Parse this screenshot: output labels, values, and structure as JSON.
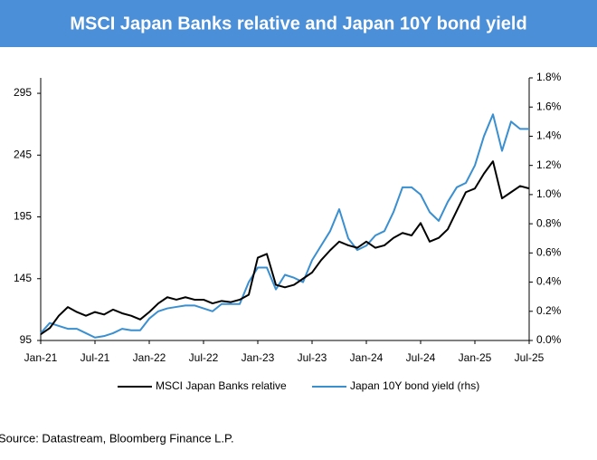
{
  "chart_data": {
    "type": "line",
    "title": "MSCI Japan Banks relative and Japan 10Y bond yield",
    "source": "Source: Datastream, Bloomberg Finance L.P.",
    "categories": [
      "Jan-21",
      null,
      null,
      null,
      null,
      null,
      "Jul-21",
      null,
      null,
      null,
      null,
      null,
      "Jan-22",
      null,
      null,
      null,
      null,
      null,
      "Jul-22",
      null,
      null,
      null,
      null,
      null,
      "Jan-23",
      null,
      null,
      null,
      null,
      null,
      "Jul-23",
      null,
      null,
      null,
      null,
      null,
      "Jan-24",
      null,
      null,
      null,
      null,
      null,
      "Jul-24",
      null,
      null,
      null,
      null,
      null,
      "Jan-25",
      null,
      null,
      null,
      null,
      null,
      "Jul-25"
    ],
    "series": [
      {
        "name": "MSCI Japan Banks relative",
        "color": "#000000",
        "values": [
          100,
          105,
          115,
          122,
          118,
          115,
          118,
          116,
          120,
          117,
          115,
          112,
          118,
          125,
          130,
          128,
          130,
          128,
          128,
          125,
          127,
          126,
          128,
          132,
          162,
          165,
          140,
          138,
          140,
          145,
          150,
          160,
          168,
          175,
          172,
          170,
          175,
          170,
          172,
          178,
          182,
          180,
          190,
          175,
          178,
          185,
          200,
          215,
          218,
          230,
          240,
          210,
          215,
          220,
          218
        ]
      },
      {
        "name": "Japan 10Y bond yield (rhs)",
        "color": "#3a8fd0",
        "axis": "y2",
        "values": [
          0.05,
          0.12,
          0.1,
          0.08,
          0.08,
          0.05,
          0.02,
          0.03,
          0.05,
          0.08,
          0.07,
          0.07,
          0.15,
          0.2,
          0.22,
          0.23,
          0.24,
          0.24,
          0.22,
          0.2,
          0.25,
          0.25,
          0.25,
          0.4,
          0.5,
          0.5,
          0.35,
          0.45,
          0.43,
          0.4,
          0.55,
          0.65,
          0.75,
          0.9,
          0.7,
          0.62,
          0.65,
          0.72,
          0.75,
          0.88,
          1.05,
          1.05,
          1.0,
          0.88,
          0.82,
          0.95,
          1.05,
          1.08,
          1.2,
          1.4,
          1.55,
          1.3,
          1.5,
          1.45,
          1.45
        ]
      }
    ],
    "ylim": [
      95,
      307.5
    ],
    "yticks": [
      95,
      145,
      195,
      245,
      295
    ],
    "y2lim": [
      0,
      1.8
    ],
    "y2ticks": [
      {
        "value": 0,
        "label": "0.0%"
      },
      {
        "value": 0.2,
        "label": "0.2%"
      },
      {
        "value": 0.4,
        "label": "0.4%"
      },
      {
        "value": 0.6,
        "label": "0.6%"
      },
      {
        "value": 0.8,
        "label": "0.8%"
      },
      {
        "value": 1.0,
        "label": "1.0%"
      },
      {
        "value": 1.2,
        "label": "1.2%"
      },
      {
        "value": 1.4,
        "label": "1.4%"
      },
      {
        "value": 1.6,
        "label": "1.6%"
      },
      {
        "value": 1.8,
        "label": "1.8%"
      }
    ],
    "grid": false
  }
}
